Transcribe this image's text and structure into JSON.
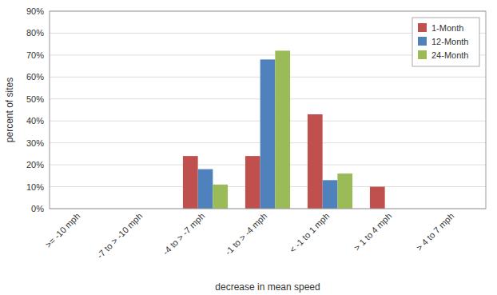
{
  "chart_data": {
    "type": "bar",
    "categories": [
      ">= -10 mph",
      "-7 to > -10 mph",
      "-4 to > -7 mph",
      "-1 to > -4 mph",
      "< -1 to 1 mph",
      "> 1 to 4 mph",
      "> 4 to 7 mph"
    ],
    "series": [
      {
        "name": "1-Month",
        "color": "#C0504D",
        "values": [
          0,
          0,
          24,
          24,
          43,
          10,
          0
        ]
      },
      {
        "name": "12-Month",
        "color": "#4F81BD",
        "values": [
          0,
          0,
          18,
          68,
          13,
          0,
          0
        ]
      },
      {
        "name": "24-Month",
        "color": "#9BBB59",
        "values": [
          0,
          0,
          11,
          72,
          16,
          0,
          0
        ]
      }
    ],
    "xlabel": "decrease in mean speed",
    "ylabel": "percent of sites",
    "ylim": [
      0,
      90
    ],
    "yticks": [
      {
        "value": 0,
        "label": "0%"
      },
      {
        "value": 10,
        "label": "10%"
      },
      {
        "value": 20,
        "label": "20%"
      },
      {
        "value": 30,
        "label": "30%"
      },
      {
        "value": 40,
        "label": "40%"
      },
      {
        "value": 50,
        "label": "50%"
      },
      {
        "value": 60,
        "label": "60%"
      },
      {
        "value": 70,
        "label": "70%"
      },
      {
        "value": 80,
        "label": "80%"
      },
      {
        "value": 90,
        "label": "90%"
      }
    ],
    "grid": true,
    "legend": "upper right"
  }
}
